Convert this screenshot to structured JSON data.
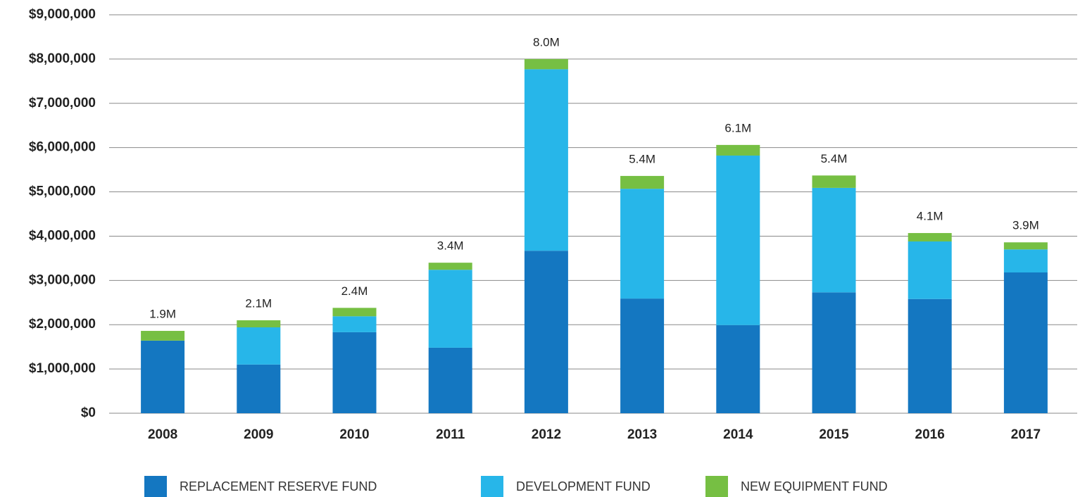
{
  "chart_data": {
    "type": "stacked_bar",
    "categories": [
      "2008",
      "2009",
      "2010",
      "2011",
      "2012",
      "2013",
      "2014",
      "2015",
      "2016",
      "2017"
    ],
    "series": [
      {
        "name": "REPLACEMENT RESERVE FUND",
        "color": "#1477c1",
        "values": [
          1640000,
          1100000,
          1830000,
          1480000,
          3670000,
          2590000,
          1990000,
          2730000,
          2580000,
          3180000
        ]
      },
      {
        "name": "DEVELOPMENT FUND",
        "color": "#27b6e9",
        "values": [
          0,
          840000,
          360000,
          1760000,
          4100000,
          2480000,
          3830000,
          2360000,
          1300000,
          520000
        ]
      },
      {
        "name": "NEW EQUIPMENT FUND",
        "color": "#76bf43",
        "values": [
          220000,
          160000,
          190000,
          160000,
          230000,
          290000,
          240000,
          280000,
          190000,
          160000
        ]
      }
    ],
    "total_labels": [
      "1.9M",
      "2.1M",
      "2.4M",
      "3.4M",
      "8.0M",
      "5.4M",
      "6.1M",
      "5.4M",
      "4.1M",
      "3.9M"
    ],
    "ylim": [
      0,
      9000000
    ],
    "yticks": [
      {
        "value": 0,
        "label": "$0"
      },
      {
        "value": 1000000,
        "label": "$1,000,000"
      },
      {
        "value": 2000000,
        "label": "$2,000,000"
      },
      {
        "value": 3000000,
        "label": "$3,000,000"
      },
      {
        "value": 4000000,
        "label": "$4,000,000"
      },
      {
        "value": 5000000,
        "label": "$5,000,000"
      },
      {
        "value": 6000000,
        "label": "$6,000,000"
      },
      {
        "value": 7000000,
        "label": "$7,000,000"
      },
      {
        "value": 8000000,
        "label": "$8,000,000"
      },
      {
        "value": 9000000,
        "label": "$9,000,000"
      }
    ],
    "grid": true,
    "legend": "bottom"
  }
}
